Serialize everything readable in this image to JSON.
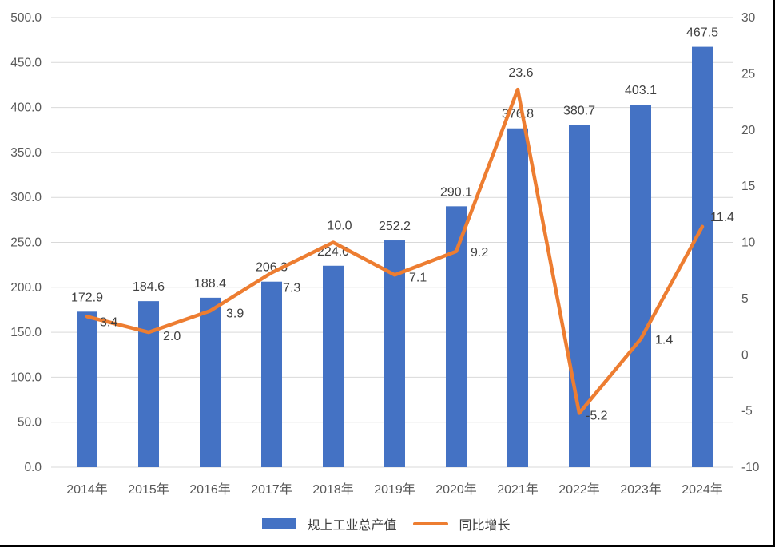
{
  "chart_data": {
    "type": "bar",
    "subtype": "combo-bar-line",
    "title": "",
    "categories": [
      "2014年",
      "2015年",
      "2016年",
      "2017年",
      "2018年",
      "2019年",
      "2020年",
      "2021年",
      "2022年",
      "2023年",
      "2024年"
    ],
    "series": [
      {
        "name": "规上工业总产值",
        "type": "bar",
        "axis": "left",
        "color": "#4472C4",
        "values": [
          172.9,
          184.6,
          188.4,
          206.3,
          224.0,
          252.2,
          290.1,
          376.8,
          380.7,
          403.1,
          467.5
        ]
      },
      {
        "name": "同比增长",
        "type": "line",
        "axis": "right",
        "color": "#ED7D31",
        "values": [
          3.4,
          2.0,
          3.9,
          7.3,
          10.0,
          7.1,
          9.2,
          23.6,
          -5.2,
          1.4,
          11.4
        ]
      }
    ],
    "axes": {
      "left": {
        "min": 0,
        "max": 500,
        "step": 50,
        "decimals": 1
      },
      "right": {
        "min": -10,
        "max": 30,
        "step": 5,
        "decimals": 0
      }
    },
    "grid": true,
    "data_labels": true,
    "legend_position": "bottom",
    "colors": {
      "grid": "#D9D9D9",
      "axis_text": "#595959",
      "data_label_text": "#404040",
      "frame_border": "#000000"
    }
  }
}
